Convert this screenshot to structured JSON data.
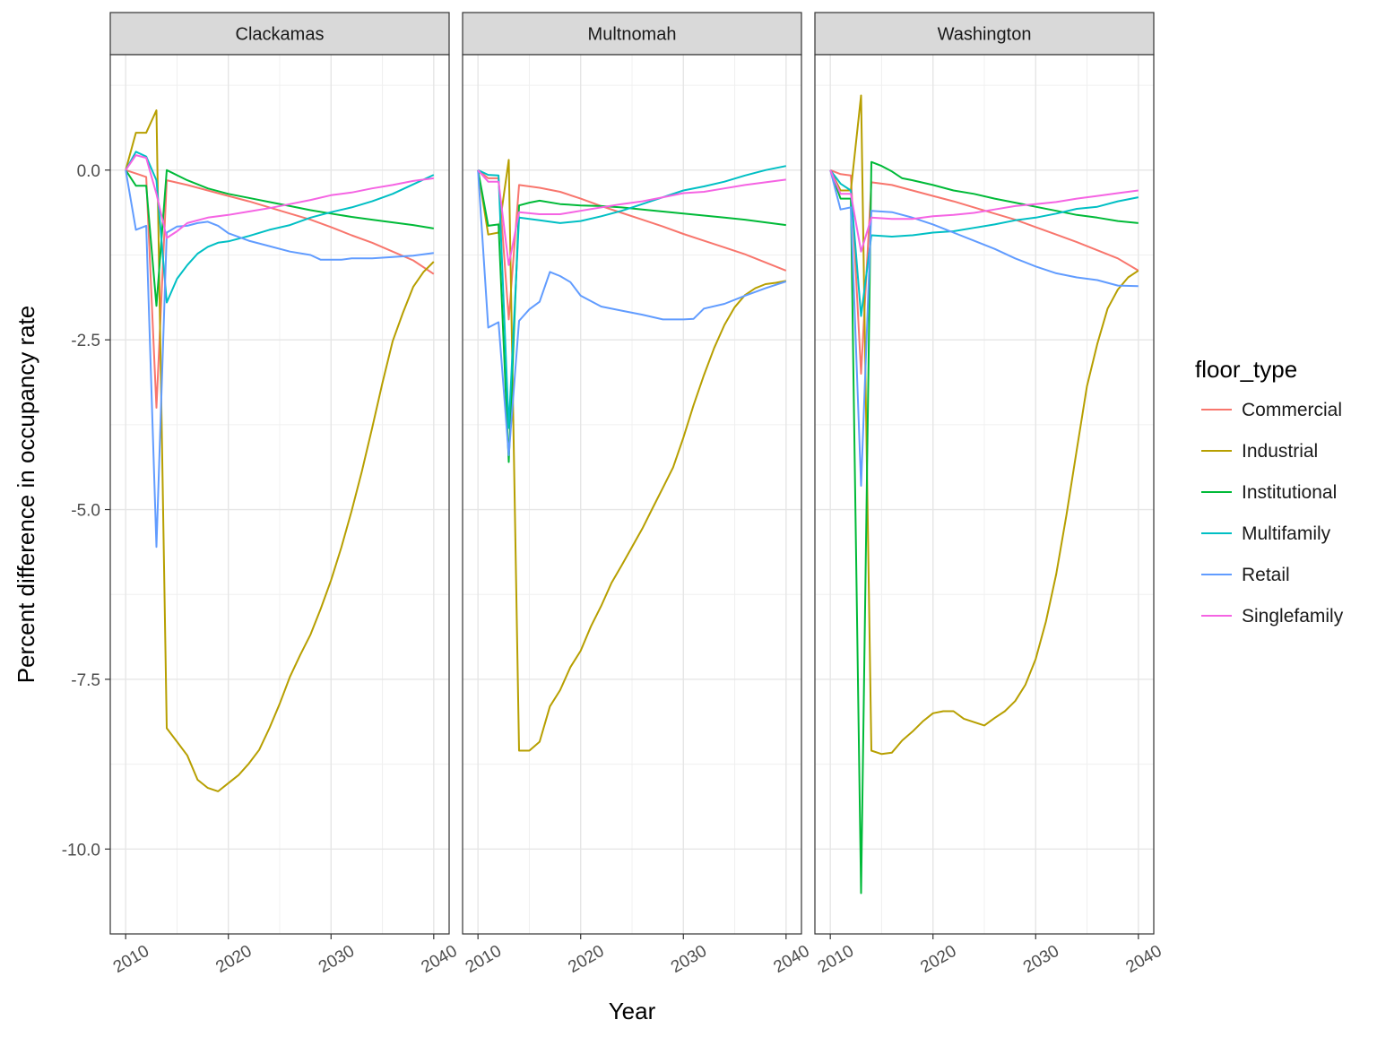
{
  "chart_data": {
    "type": "line",
    "facet_by": "county",
    "facets": [
      "Clackamas",
      "Multnomah",
      "Washington"
    ],
    "xlabel": "Year",
    "ylabel": "Percent difference in occupancy rate",
    "xlim": [
      2008.5,
      2041.5
    ],
    "ylim": [
      -11.25,
      1.7
    ],
    "x_ticks": [
      2010,
      2020,
      2030,
      2040
    ],
    "x_tick_labels": [
      "2010",
      "2020",
      "2030",
      "2040"
    ],
    "y_ticks": [
      0,
      -2.5,
      -5,
      -7.5,
      -10
    ],
    "y_tick_labels": [
      "0.0",
      "-2.5",
      "-5.0",
      "-7.5",
      "-10.0"
    ],
    "grid": true,
    "legend": {
      "title": "floor_type",
      "position": "right",
      "entries": [
        "Commercial",
        "Industrial",
        "Institutional",
        "Multifamily",
        "Retail",
        "Singlefamily"
      ]
    },
    "colors": {
      "Commercial": "#F8766D",
      "Industrial": "#B79F00",
      "Institutional": "#00BA38",
      "Multifamily": "#00BFC4",
      "Retail": "#619CFF",
      "Singlefamily": "#F564E3"
    },
    "panels": [
      {
        "facet": "Clackamas",
        "series": [
          {
            "name": "Commercial",
            "x": [
              2010,
              2011,
              2012,
              2013,
              2014,
              2016,
              2018,
              2020,
              2022,
              2024,
              2026,
              2028,
              2030,
              2032,
              2034,
              2036,
              2038,
              2040
            ],
            "y": [
              0,
              -0.05,
              -0.1,
              -3.5,
              -0.15,
              -0.22,
              -0.3,
              -0.38,
              -0.46,
              -0.55,
              -0.64,
              -0.73,
              -0.84,
              -0.96,
              -1.07,
              -1.2,
              -1.33,
              -1.53
            ]
          },
          {
            "name": "Industrial",
            "x": [
              2010,
              2011,
              2012,
              2013,
              2014,
              2015,
              2016,
              2017,
              2018,
              2019,
              2020,
              2021,
              2022,
              2023,
              2024,
              2025,
              2026,
              2027,
              2028,
              2029,
              2030,
              2031,
              2032,
              2033,
              2034,
              2035,
              2036,
              2037,
              2038,
              2039,
              2040
            ],
            "y": [
              0,
              0.55,
              0.55,
              0.88,
              -8.22,
              -8.42,
              -8.62,
              -8.98,
              -9.1,
              -9.15,
              -9.03,
              -8.91,
              -8.74,
              -8.54,
              -8.22,
              -7.86,
              -7.46,
              -7.14,
              -6.84,
              -6.46,
              -6.04,
              -5.56,
              -5.02,
              -4.44,
              -3.8,
              -3.14,
              -2.52,
              -2.1,
              -1.72,
              -1.5,
              -1.35
            ]
          },
          {
            "name": "Institutional",
            "x": [
              2010,
              2011,
              2012,
              2013,
              2014,
              2016,
              2018,
              2020,
              2022,
              2024,
              2026,
              2028,
              2030,
              2032,
              2034,
              2036,
              2038,
              2040
            ],
            "y": [
              0,
              -0.23,
              -0.23,
              -2.0,
              0,
              -0.15,
              -0.27,
              -0.35,
              -0.41,
              -0.47,
              -0.53,
              -0.59,
              -0.64,
              -0.69,
              -0.73,
              -0.77,
              -0.81,
              -0.86
            ]
          },
          {
            "name": "Multifamily",
            "x": [
              2010,
              2011,
              2012,
              2013,
              2014,
              2015,
              2016,
              2017,
              2018,
              2019,
              2020,
              2022,
              2024,
              2026,
              2028,
              2030,
              2032,
              2034,
              2036,
              2038,
              2040
            ],
            "y": [
              0,
              0.27,
              0.2,
              -0.15,
              -1.95,
              -1.6,
              -1.4,
              -1.23,
              -1.13,
              -1.07,
              -1.05,
              -0.97,
              -0.88,
              -0.81,
              -0.7,
              -0.62,
              -0.55,
              -0.46,
              -0.35,
              -0.21,
              -0.07
            ]
          },
          {
            "name": "Retail",
            "x": [
              2010,
              2011,
              2012,
              2013,
              2014,
              2015,
              2016,
              2017,
              2018,
              2019,
              2020,
              2022,
              2024,
              2026,
              2028,
              2029,
              2030,
              2031,
              2032,
              2034,
              2036,
              2038,
              2040
            ],
            "y": [
              0,
              -0.88,
              -0.82,
              -5.55,
              -0.92,
              -0.83,
              -0.82,
              -0.78,
              -0.76,
              -0.82,
              -0.93,
              -1.04,
              -1.12,
              -1.2,
              -1.25,
              -1.32,
              -1.32,
              -1.32,
              -1.3,
              -1.3,
              -1.28,
              -1.26,
              -1.22
            ]
          },
          {
            "name": "Singlefamily",
            "x": [
              2010,
              2011,
              2012,
              2013,
              2014,
              2015,
              2016,
              2018,
              2020,
              2022,
              2024,
              2026,
              2028,
              2030,
              2032,
              2034,
              2036,
              2038,
              2040
            ],
            "y": [
              0,
              0.22,
              0.18,
              -0.35,
              -1.0,
              -0.9,
              -0.78,
              -0.7,
              -0.66,
              -0.61,
              -0.56,
              -0.5,
              -0.44,
              -0.37,
              -0.33,
              -0.27,
              -0.22,
              -0.16,
              -0.12
            ]
          }
        ]
      },
      {
        "facet": "Multnomah",
        "series": [
          {
            "name": "Commercial",
            "x": [
              2010,
              2011,
              2012,
              2013,
              2014,
              2016,
              2018,
              2020,
              2022,
              2024,
              2026,
              2028,
              2030,
              2032,
              2034,
              2036,
              2038,
              2040
            ],
            "y": [
              0,
              -0.12,
              -0.12,
              -2.2,
              -0.22,
              -0.26,
              -0.32,
              -0.42,
              -0.53,
              -0.63,
              -0.73,
              -0.83,
              -0.94,
              -1.04,
              -1.14,
              -1.24,
              -1.36,
              -1.48
            ]
          },
          {
            "name": "Industrial",
            "x": [
              2010,
              2011,
              2012,
              2013,
              2014,
              2015,
              2016,
              2017,
              2018,
              2019,
              2020,
              2021,
              2022,
              2023,
              2024,
              2025,
              2026,
              2027,
              2028,
              2029,
              2030,
              2031,
              2032,
              2033,
              2034,
              2035,
              2036,
              2037,
              2038,
              2039,
              2040
            ],
            "y": [
              0,
              -0.95,
              -0.92,
              0.15,
              -8.55,
              -8.55,
              -8.42,
              -7.9,
              -7.66,
              -7.32,
              -7.08,
              -6.72,
              -6.42,
              -6.08,
              -5.82,
              -5.55,
              -5.28,
              -4.98,
              -4.68,
              -4.38,
              -3.94,
              -3.46,
              -3.02,
              -2.62,
              -2.28,
              -2.02,
              -1.84,
              -1.74,
              -1.68,
              -1.66,
              -1.63
            ]
          },
          {
            "name": "Institutional",
            "x": [
              2010,
              2011,
              2012,
              2013,
              2014,
              2015,
              2016,
              2018,
              2020,
              2022,
              2024,
              2026,
              2028,
              2030,
              2032,
              2034,
              2036,
              2038,
              2040
            ],
            "y": [
              0,
              -0.82,
              -0.8,
              -4.3,
              -0.52,
              -0.48,
              -0.45,
              -0.5,
              -0.52,
              -0.53,
              -0.55,
              -0.58,
              -0.61,
              -0.64,
              -0.67,
              -0.7,
              -0.73,
              -0.77,
              -0.81
            ]
          },
          {
            "name": "Multifamily",
            "x": [
              2010,
              2011,
              2012,
              2013,
              2014,
              2016,
              2018,
              2020,
              2022,
              2024,
              2026,
              2028,
              2030,
              2032,
              2034,
              2036,
              2038,
              2040
            ],
            "y": [
              0,
              -0.07,
              -0.08,
              -3.8,
              -0.7,
              -0.74,
              -0.78,
              -0.75,
              -0.68,
              -0.6,
              -0.5,
              -0.4,
              -0.3,
              -0.24,
              -0.17,
              -0.08,
              0,
              0.06
            ]
          },
          {
            "name": "Retail",
            "x": [
              2010,
              2011,
              2012,
              2013,
              2014,
              2015,
              2016,
              2017,
              2018,
              2019,
              2020,
              2022,
              2024,
              2026,
              2028,
              2030,
              2031,
              2032,
              2034,
              2036,
              2038,
              2040
            ],
            "y": [
              0,
              -2.32,
              -2.24,
              -4.2,
              -2.22,
              -2.05,
              -1.94,
              -1.5,
              -1.56,
              -1.65,
              -1.85,
              -2.01,
              -2.07,
              -2.13,
              -2.2,
              -2.2,
              -2.19,
              -2.04,
              -1.97,
              -1.85,
              -1.74,
              -1.64
            ]
          },
          {
            "name": "Singlefamily",
            "x": [
              2010,
              2011,
              2012,
              2013,
              2014,
              2016,
              2018,
              2020,
              2022,
              2024,
              2026,
              2028,
              2030,
              2032,
              2034,
              2036,
              2038,
              2040
            ],
            "y": [
              0,
              -0.17,
              -0.17,
              -1.4,
              -0.62,
              -0.65,
              -0.65,
              -0.6,
              -0.55,
              -0.5,
              -0.46,
              -0.4,
              -0.34,
              -0.32,
              -0.27,
              -0.22,
              -0.18,
              -0.14
            ]
          }
        ]
      },
      {
        "facet": "Washington",
        "series": [
          {
            "name": "Commercial",
            "x": [
              2010,
              2011,
              2012,
              2013,
              2014,
              2016,
              2018,
              2020,
              2022,
              2024,
              2026,
              2028,
              2030,
              2032,
              2034,
              2036,
              2038,
              2040
            ],
            "y": [
              0,
              -0.06,
              -0.08,
              -3.0,
              -0.18,
              -0.22,
              -0.3,
              -0.38,
              -0.46,
              -0.55,
              -0.64,
              -0.73,
              -0.84,
              -0.95,
              -1.06,
              -1.18,
              -1.3,
              -1.48
            ]
          },
          {
            "name": "Industrial",
            "x": [
              2010,
              2011,
              2012,
              2013,
              2014,
              2015,
              2016,
              2017,
              2018,
              2019,
              2020,
              2021,
              2022,
              2023,
              2024,
              2025,
              2026,
              2027,
              2028,
              2029,
              2030,
              2031,
              2032,
              2033,
              2034,
              2035,
              2036,
              2037,
              2038,
              2039,
              2040
            ],
            "y": [
              0,
              -0.3,
              -0.3,
              1.1,
              -8.55,
              -8.6,
              -8.58,
              -8.4,
              -8.27,
              -8.12,
              -8.0,
              -7.97,
              -7.97,
              -8.08,
              -8.13,
              -8.18,
              -8.07,
              -7.97,
              -7.82,
              -7.58,
              -7.2,
              -6.65,
              -5.95,
              -5.08,
              -4.12,
              -3.18,
              -2.56,
              -2.04,
              -1.76,
              -1.58,
              -1.48
            ]
          },
          {
            "name": "Institutional",
            "x": [
              2010,
              2011,
              2012,
              2013,
              2014,
              2015,
              2016,
              2017,
              2018,
              2020,
              2022,
              2024,
              2026,
              2028,
              2030,
              2032,
              2034,
              2036,
              2038,
              2040
            ],
            "y": [
              0,
              -0.42,
              -0.42,
              -10.65,
              0.12,
              0.06,
              -0.02,
              -0.12,
              -0.15,
              -0.22,
              -0.3,
              -0.35,
              -0.42,
              -0.48,
              -0.54,
              -0.6,
              -0.66,
              -0.7,
              -0.75,
              -0.78
            ]
          },
          {
            "name": "Multifamily",
            "x": [
              2010,
              2011,
              2012,
              2013,
              2014,
              2016,
              2018,
              2020,
              2022,
              2024,
              2026,
              2028,
              2030,
              2032,
              2034,
              2036,
              2038,
              2040
            ],
            "y": [
              0,
              -0.2,
              -0.3,
              -2.15,
              -0.96,
              -0.98,
              -0.96,
              -0.92,
              -0.9,
              -0.85,
              -0.8,
              -0.74,
              -0.7,
              -0.64,
              -0.57,
              -0.54,
              -0.46,
              -0.4
            ]
          },
          {
            "name": "Retail",
            "x": [
              2010,
              2011,
              2012,
              2013,
              2014,
              2016,
              2018,
              2020,
              2022,
              2024,
              2026,
              2028,
              2030,
              2032,
              2034,
              2036,
              2038,
              2040
            ],
            "y": [
              0,
              -0.58,
              -0.55,
              -4.65,
              -0.6,
              -0.62,
              -0.7,
              -0.8,
              -0.92,
              -1.04,
              -1.16,
              -1.3,
              -1.42,
              -1.52,
              -1.58,
              -1.62,
              -1.7,
              -1.71
            ]
          },
          {
            "name": "Singlefamily",
            "x": [
              2010,
              2011,
              2012,
              2013,
              2014,
              2016,
              2018,
              2020,
              2022,
              2024,
              2026,
              2028,
              2030,
              2032,
              2034,
              2036,
              2038,
              2040
            ],
            "y": [
              0,
              -0.35,
              -0.35,
              -1.2,
              -0.7,
              -0.72,
              -0.72,
              -0.68,
              -0.66,
              -0.63,
              -0.58,
              -0.53,
              -0.5,
              -0.47,
              -0.42,
              -0.38,
              -0.34,
              -0.3
            ]
          }
        ]
      }
    ]
  }
}
